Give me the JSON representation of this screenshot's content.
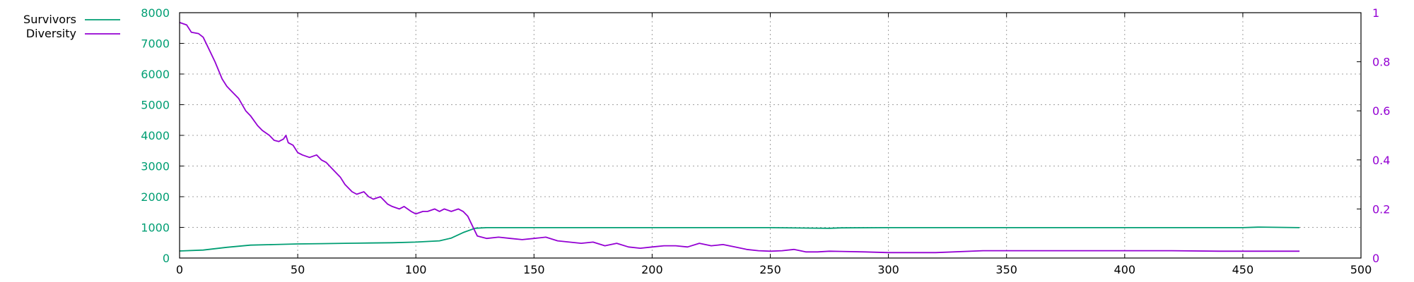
{
  "chart_data": {
    "type": "line",
    "title": "",
    "xlabel": "",
    "ylabel": "",
    "y2label": "",
    "xlim": [
      0,
      500
    ],
    "ylim": [
      0,
      8000
    ],
    "y2lim": [
      0,
      1
    ],
    "x_ticks": [
      "0",
      "50",
      "100",
      "150",
      "200",
      "250",
      "300",
      "350",
      "400",
      "450",
      "500"
    ],
    "y_ticks": [
      "0",
      "1000",
      "2000",
      "3000",
      "4000",
      "5000",
      "6000",
      "7000",
      "8000"
    ],
    "y2_ticks": [
      "0",
      "0.2",
      "0.4",
      "0.6",
      "0.8",
      "1"
    ],
    "grid": true,
    "legend_position": "top-left, outside plot",
    "colors": {
      "survivors": "#009e73",
      "diversity": "#9400d3",
      "y_axis_text": "#009e73",
      "y2_axis_text": "#9400d3"
    },
    "series": [
      {
        "name": "Survivors",
        "axis": "y1",
        "x": [
          0,
          10,
          20,
          30,
          40,
          50,
          60,
          70,
          80,
          90,
          100,
          110,
          115,
          120,
          125,
          130,
          150,
          200,
          250,
          275,
          280,
          300,
          350,
          400,
          450,
          457,
          474
        ],
        "y": [
          230,
          260,
          350,
          420,
          440,
          460,
          470,
          480,
          490,
          500,
          520,
          560,
          650,
          830,
          970,
          990,
          990,
          990,
          990,
          970,
          985,
          990,
          990,
          990,
          990,
          1010,
          990
        ]
      },
      {
        "name": "Diversity",
        "axis": "y2",
        "x": [
          0,
          3,
          5,
          8,
          10,
          12,
          15,
          18,
          20,
          22,
          25,
          28,
          30,
          33,
          35,
          38,
          40,
          42,
          44,
          45,
          46,
          48,
          50,
          52,
          55,
          58,
          60,
          62,
          65,
          68,
          70,
          73,
          75,
          78,
          80,
          82,
          85,
          88,
          90,
          93,
          95,
          98,
          100,
          103,
          105,
          108,
          110,
          112,
          115,
          118,
          120,
          122,
          124,
          126,
          130,
          135,
          140,
          145,
          150,
          155,
          160,
          165,
          170,
          175,
          180,
          185,
          190,
          195,
          200,
          205,
          210,
          215,
          220,
          225,
          230,
          235,
          240,
          245,
          250,
          255,
          260,
          265,
          270,
          275,
          280,
          290,
          300,
          320,
          340,
          360,
          380,
          400,
          420,
          440,
          460,
          474
        ],
        "y": [
          0.96,
          0.95,
          0.92,
          0.915,
          0.9,
          0.86,
          0.8,
          0.73,
          0.7,
          0.68,
          0.65,
          0.6,
          0.58,
          0.54,
          0.52,
          0.5,
          0.48,
          0.475,
          0.485,
          0.5,
          0.47,
          0.46,
          0.43,
          0.42,
          0.41,
          0.42,
          0.4,
          0.39,
          0.36,
          0.33,
          0.3,
          0.27,
          0.26,
          0.27,
          0.25,
          0.24,
          0.25,
          0.22,
          0.21,
          0.2,
          0.21,
          0.19,
          0.18,
          0.19,
          0.19,
          0.2,
          0.19,
          0.2,
          0.19,
          0.2,
          0.19,
          0.17,
          0.13,
          0.09,
          0.08,
          0.085,
          0.08,
          0.075,
          0.08,
          0.085,
          0.07,
          0.065,
          0.06,
          0.065,
          0.05,
          0.06,
          0.045,
          0.04,
          0.045,
          0.05,
          0.05,
          0.045,
          0.06,
          0.05,
          0.055,
          0.045,
          0.035,
          0.03,
          0.028,
          0.03,
          0.035,
          0.025,
          0.025,
          0.028,
          0.027,
          0.025,
          0.022,
          0.022,
          0.03,
          0.03,
          0.03,
          0.03,
          0.03,
          0.028,
          0.028,
          0.028
        ]
      }
    ]
  }
}
